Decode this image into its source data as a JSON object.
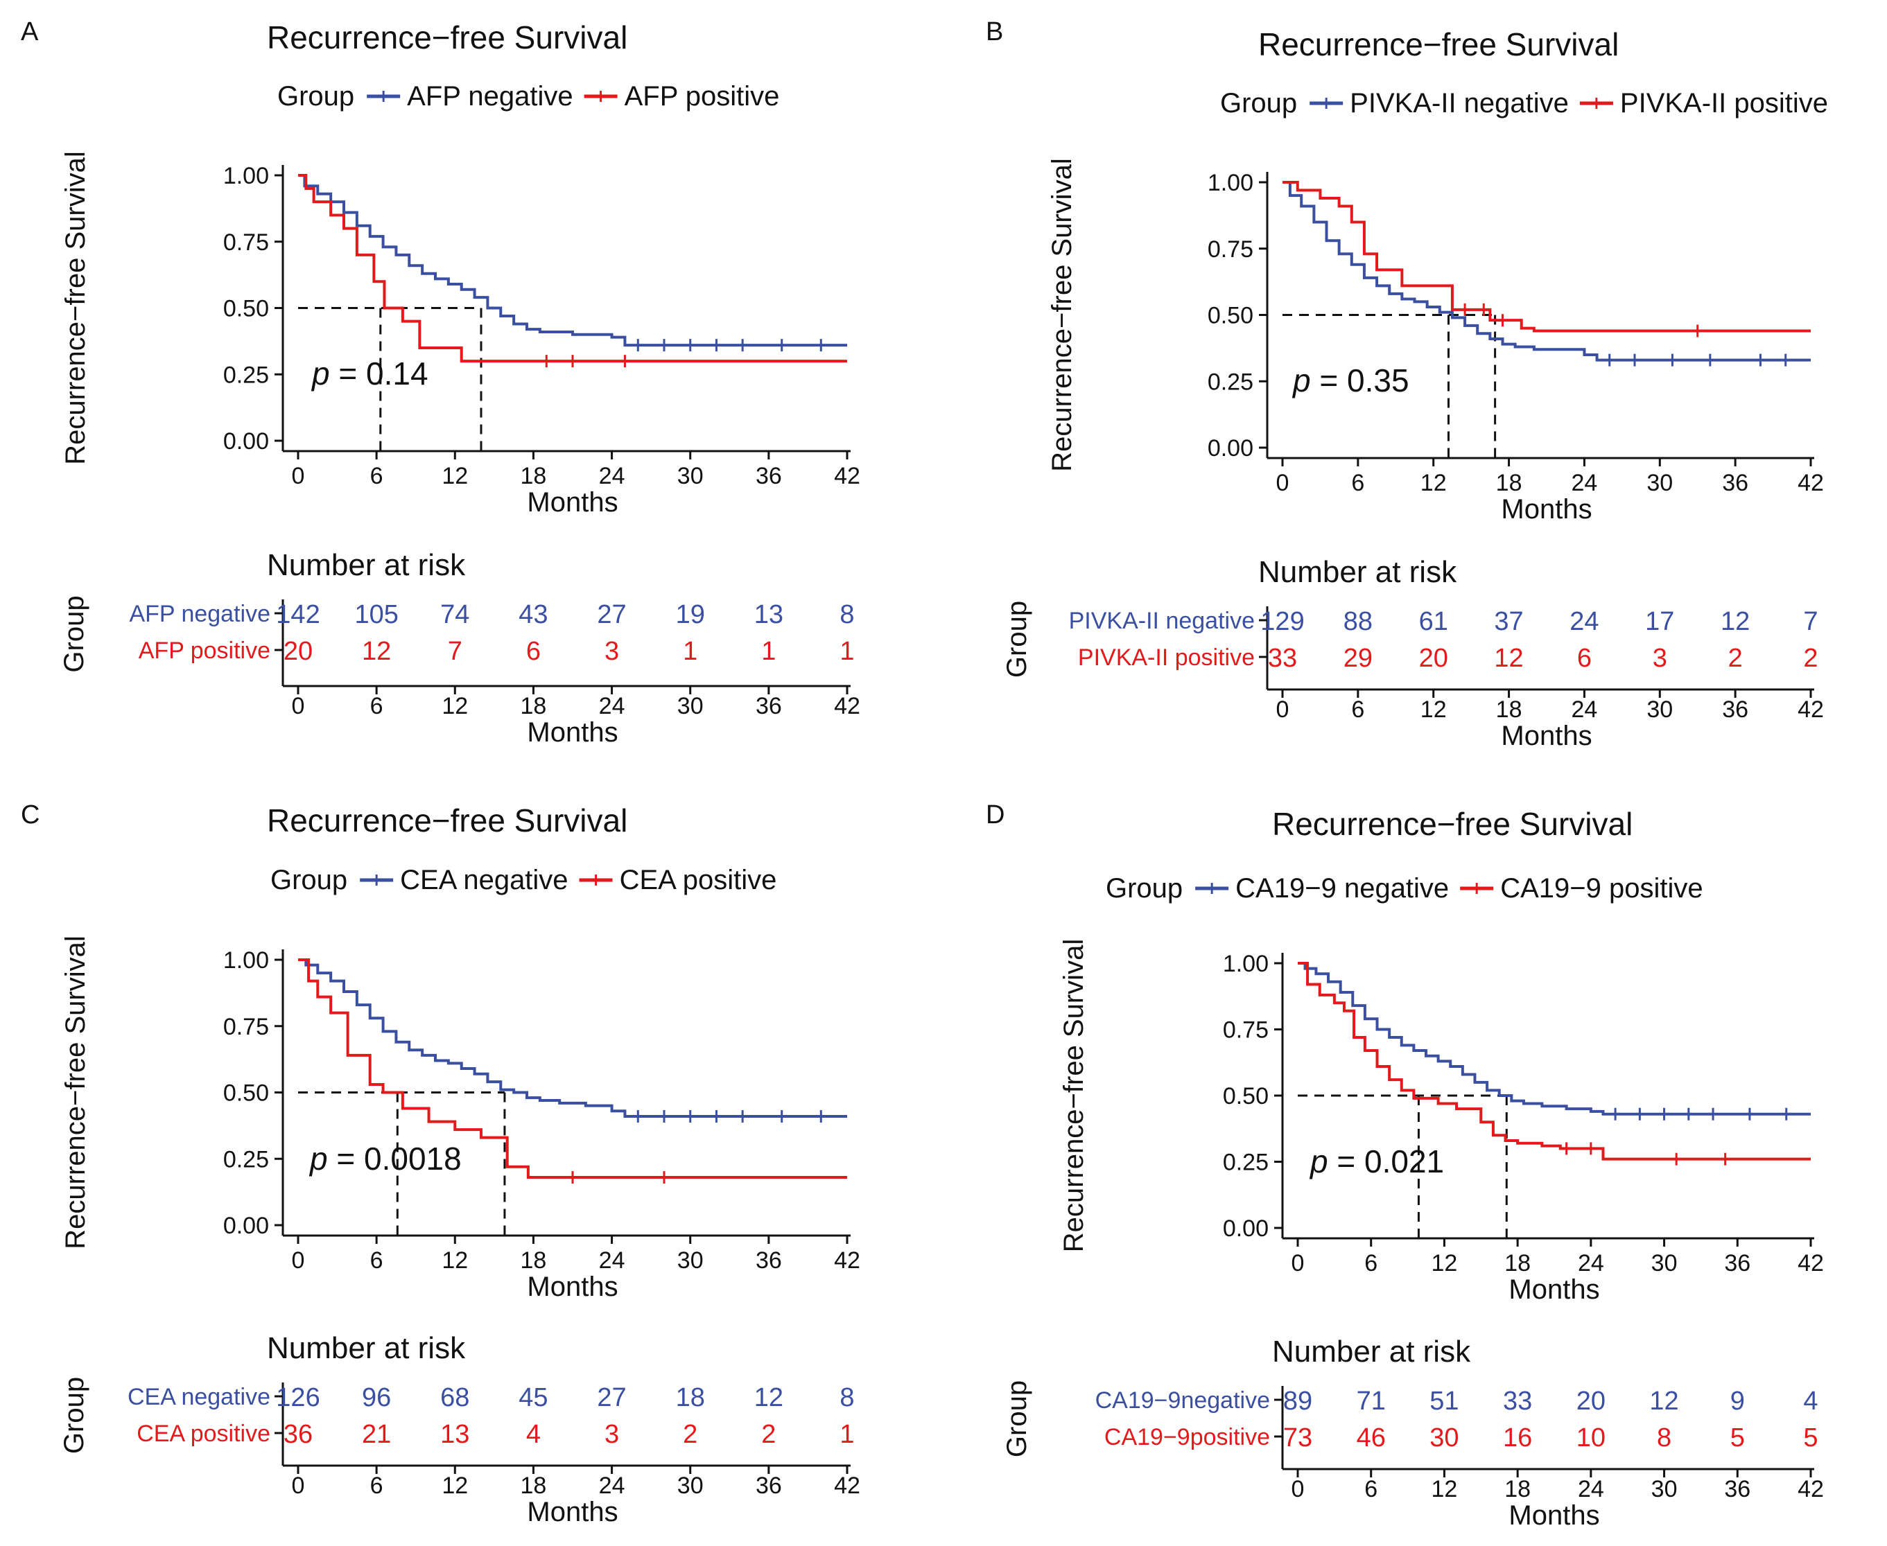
{
  "colors": {
    "negative": "#3a4fa0",
    "positive": "#e31a1c",
    "axis": "#111111"
  },
  "chart_data": [
    {
      "panel": "A",
      "type": "line",
      "title": "Recurrence−free Survival",
      "legend_title": "Group",
      "xlabel": "Months",
      "ylabel": "Recurrence−free Survival",
      "xlim": [
        0,
        42
      ],
      "ylim": [
        0,
        1
      ],
      "xticks": [
        "0",
        "6",
        "12",
        "18",
        "24",
        "30",
        "36",
        "42"
      ],
      "yticks": [
        "0.00",
        "0.25",
        "0.50",
        "0.75",
        "1.00"
      ],
      "p_value": "= 0.14",
      "median": [
        6.3,
        14.0
      ],
      "series": [
        {
          "name": "AFP negative",
          "color": "negative",
          "x": [
            0,
            0.5,
            1.5,
            2.5,
            3.5,
            4.5,
            5.5,
            6.5,
            7.5,
            8.5,
            9.5,
            10.5,
            11.5,
            12.5,
            13.5,
            14.5,
            15.5,
            16.5,
            17.5,
            18.5,
            19.5,
            21,
            22.5,
            24,
            25,
            42
          ],
          "y": [
            1.0,
            0.96,
            0.93,
            0.9,
            0.86,
            0.81,
            0.77,
            0.73,
            0.7,
            0.66,
            0.63,
            0.61,
            0.59,
            0.57,
            0.54,
            0.5,
            0.47,
            0.44,
            0.42,
            0.41,
            0.41,
            0.4,
            0.4,
            0.39,
            0.36,
            0.36
          ],
          "censor_x": [
            26,
            28,
            30,
            32,
            34,
            37,
            40
          ]
        },
        {
          "name": "AFP positive",
          "color": "positive",
          "x": [
            0,
            0.6,
            1.2,
            2.5,
            3.5,
            4.5,
            5.8,
            6.6,
            8.0,
            9.3,
            12.5,
            42
          ],
          "y": [
            1.0,
            0.95,
            0.9,
            0.85,
            0.8,
            0.7,
            0.6,
            0.5,
            0.45,
            0.35,
            0.3,
            0.3
          ],
          "censor_x": [
            19,
            21,
            25
          ]
        }
      ],
      "risk_table": {
        "title": "Number at risk",
        "ylabel": "Group",
        "xlabel": "Months",
        "rows": [
          {
            "label": "AFP negative",
            "color": "negative",
            "values": [
              "142",
              "105",
              "74",
              "43",
              "27",
              "19",
              "13",
              "8"
            ]
          },
          {
            "label": "AFP positive",
            "color": "positive",
            "values": [
              "20",
              "12",
              "7",
              "6",
              "3",
              "1",
              "1",
              "1"
            ]
          }
        ]
      }
    },
    {
      "panel": "B",
      "type": "line",
      "title": "Recurrence−free Survival",
      "legend_title": "Group",
      "xlabel": "Months",
      "ylabel": "Recurrence−free Survival",
      "xlim": [
        0,
        42
      ],
      "ylim": [
        0,
        1
      ],
      "xticks": [
        "0",
        "6",
        "12",
        "18",
        "24",
        "30",
        "36",
        "42"
      ],
      "yticks": [
        "0.00",
        "0.25",
        "0.50",
        "0.75",
        "1.00"
      ],
      "p_value": "= 0.35",
      "median": [
        13.2,
        16.9
      ],
      "series": [
        {
          "name": "PIVKA-II negative",
          "color": "negative",
          "x": [
            0,
            0.6,
            1.5,
            2.5,
            3.5,
            4.5,
            5.5,
            6.5,
            7.5,
            8.5,
            9.5,
            10.5,
            11.5,
            12.5,
            13.5,
            14.5,
            15.5,
            16.5,
            17.5,
            18.5,
            20,
            22,
            24,
            25,
            42
          ],
          "y": [
            1.0,
            0.95,
            0.91,
            0.85,
            0.78,
            0.73,
            0.69,
            0.64,
            0.61,
            0.58,
            0.56,
            0.55,
            0.53,
            0.51,
            0.49,
            0.46,
            0.43,
            0.41,
            0.39,
            0.38,
            0.37,
            0.37,
            0.35,
            0.33,
            0.33
          ],
          "censor_x": [
            26,
            28,
            31,
            34,
            38,
            40
          ]
        },
        {
          "name": "PIVKA-II positive",
          "color": "positive",
          "x": [
            0,
            1.2,
            3.0,
            4.5,
            5.5,
            6.5,
            7.5,
            9.5,
            10.5,
            13.5,
            16.5,
            19.0,
            20.0,
            42
          ],
          "y": [
            1.0,
            0.97,
            0.94,
            0.91,
            0.85,
            0.73,
            0.67,
            0.61,
            0.61,
            0.52,
            0.48,
            0.45,
            0.44,
            0.44
          ],
          "censor_x": [
            14.5,
            16,
            17.5,
            33
          ]
        }
      ],
      "risk_table": {
        "title": "Number at risk",
        "ylabel": "Group",
        "xlabel": "Months",
        "rows": [
          {
            "label": "PIVKA-II negative",
            "color": "negative",
            "values": [
              "129",
              "88",
              "61",
              "37",
              "24",
              "17",
              "12",
              "7"
            ]
          },
          {
            "label": "PIVKA-II  positive",
            "color": "positive",
            "values": [
              "33",
              "29",
              "20",
              "12",
              "6",
              "3",
              "2",
              "2"
            ]
          }
        ]
      }
    },
    {
      "panel": "C",
      "type": "line",
      "title": "Recurrence−free Survival",
      "legend_title": "Group",
      "xlabel": "Months",
      "ylabel": "Recurrence−free Survival",
      "xlim": [
        0,
        42
      ],
      "ylim": [
        0,
        1
      ],
      "xticks": [
        "0",
        "6",
        "12",
        "18",
        "24",
        "30",
        "36",
        "42"
      ],
      "yticks": [
        "0.00",
        "0.25",
        "0.50",
        "0.75",
        "1.00"
      ],
      "p_value": "= 0.0018",
      "median": [
        7.6,
        15.8
      ],
      "series": [
        {
          "name": "CEA negative",
          "color": "negative",
          "x": [
            0,
            0.6,
            1.5,
            2.5,
            3.5,
            4.5,
            5.5,
            6.5,
            7.5,
            8.5,
            9.5,
            10.5,
            11.5,
            12.5,
            13.5,
            14.5,
            15.5,
            16.5,
            17.5,
            18.5,
            20,
            22,
            24,
            25,
            42
          ],
          "y": [
            1.0,
            0.98,
            0.95,
            0.92,
            0.88,
            0.83,
            0.78,
            0.73,
            0.69,
            0.66,
            0.64,
            0.62,
            0.61,
            0.59,
            0.57,
            0.54,
            0.51,
            0.5,
            0.48,
            0.47,
            0.46,
            0.45,
            0.43,
            0.41,
            0.41
          ],
          "censor_x": [
            26,
            28,
            30,
            32,
            34,
            37,
            40
          ]
        },
        {
          "name": "CEA positive",
          "color": "positive",
          "x": [
            0,
            0.8,
            1.5,
            2.5,
            3.8,
            5.5,
            6.5,
            8.0,
            10.0,
            12.0,
            14.0,
            16.0,
            17.6,
            42
          ],
          "y": [
            1.0,
            0.92,
            0.86,
            0.8,
            0.64,
            0.53,
            0.5,
            0.44,
            0.39,
            0.36,
            0.33,
            0.22,
            0.18,
            0.18
          ],
          "censor_x": [
            21,
            28
          ]
        }
      ],
      "risk_table": {
        "title": "Number at risk",
        "ylabel": "Group",
        "xlabel": "Months",
        "rows": [
          {
            "label": "CEA negative",
            "color": "negative",
            "values": [
              "126",
              "96",
              "68",
              "45",
              "27",
              "18",
              "12",
              "8"
            ]
          },
          {
            "label": "CEA positive",
            "color": "positive",
            "values": [
              "36",
              "21",
              "13",
              "4",
              "3",
              "2",
              "2",
              "1"
            ]
          }
        ]
      }
    },
    {
      "panel": "D",
      "type": "line",
      "title": "Recurrence−free Survival",
      "legend_title": "Group",
      "xlabel": "Months",
      "ylabel": "Recurrence−free Survival",
      "xlim": [
        0,
        42
      ],
      "ylim": [
        0,
        1
      ],
      "xticks": [
        "0",
        "6",
        "12",
        "18",
        "24",
        "30",
        "36",
        "42"
      ],
      "yticks": [
        "0.00",
        "0.25",
        "0.50",
        "0.75",
        "1.00"
      ],
      "p_value": "= 0.021",
      "median": [
        9.9,
        17.1
      ],
      "series": [
        {
          "name": "CA19−9 negative",
          "color": "negative",
          "x": [
            0,
            0.6,
            1.5,
            2.5,
            3.5,
            4.5,
            5.5,
            6.5,
            7.5,
            8.5,
            9.5,
            10.5,
            11.5,
            12.5,
            13.5,
            14.5,
            15.5,
            16.5,
            17.5,
            18.5,
            20,
            22,
            24,
            25,
            42
          ],
          "y": [
            1.0,
            0.98,
            0.96,
            0.93,
            0.89,
            0.84,
            0.79,
            0.75,
            0.72,
            0.69,
            0.67,
            0.65,
            0.63,
            0.61,
            0.58,
            0.55,
            0.52,
            0.5,
            0.48,
            0.47,
            0.46,
            0.45,
            0.44,
            0.43,
            0.43
          ],
          "censor_x": [
            26,
            28,
            30,
            32,
            34,
            37,
            40
          ]
        },
        {
          "name": "CA19−9 positive",
          "color": "positive",
          "x": [
            0,
            0.8,
            1.8,
            3.0,
            3.8,
            4.6,
            5.5,
            6.5,
            7.5,
            8.5,
            9.5,
            11.5,
            13.0,
            15.0,
            16.0,
            17.0,
            18.0,
            20.0,
            21.5,
            25.0,
            42
          ],
          "y": [
            1.0,
            0.92,
            0.88,
            0.85,
            0.82,
            0.72,
            0.67,
            0.61,
            0.56,
            0.52,
            0.49,
            0.47,
            0.45,
            0.4,
            0.35,
            0.33,
            0.32,
            0.31,
            0.3,
            0.26,
            0.26
          ],
          "censor_x": [
            22,
            24,
            31,
            35
          ]
        }
      ],
      "risk_table": {
        "title": "Number at risk",
        "ylabel": "Group",
        "xlabel": "Months",
        "rows": [
          {
            "label": "CA19−9negative",
            "color": "negative",
            "values": [
              "89",
              "71",
              "51",
              "33",
              "20",
              "12",
              "9",
              "4"
            ]
          },
          {
            "label": "CA19−9positive",
            "color": "positive",
            "values": [
              "73",
              "46",
              "30",
              "16",
              "10",
              "8",
              "5",
              "5"
            ]
          }
        ]
      }
    }
  ]
}
